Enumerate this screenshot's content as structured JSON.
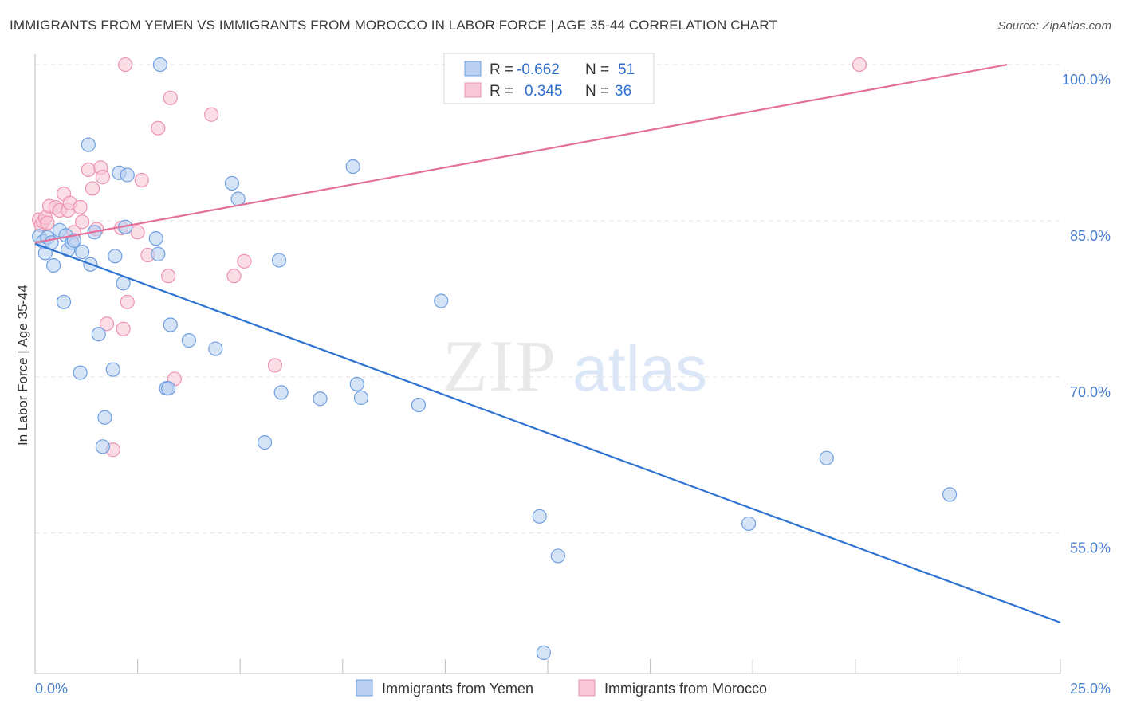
{
  "header": {
    "title": "IMMIGRANTS FROM YEMEN VS IMMIGRANTS FROM MOROCCO IN LABOR FORCE | AGE 35-44 CORRELATION CHART",
    "source": "Source: ZipAtlas.com"
  },
  "watermark": {
    "zip": "ZIP",
    "atlas": "atlas"
  },
  "stats": {
    "yemen": {
      "r_label": "R =",
      "r_value": "-0.662",
      "n_label": "N =",
      "n_value": "51"
    },
    "morocco": {
      "r_label": "R =",
      "r_value": "0.345",
      "n_label": "N =",
      "n_value": "36"
    }
  },
  "colors": {
    "yemen_fill": "#b9d0f2",
    "yemen_stroke": "#6f9fe0",
    "yemen_line": "#2f73d2",
    "morocco_fill": "#f8c6d6",
    "morocco_stroke": "#ec93b2",
    "morocco_line": "#e4709a",
    "grid": "#e3e3e3",
    "axis_label": "#4a7fcf"
  },
  "chart_data": {
    "type": "scatter",
    "title": "IMMIGRANTS FROM YEMEN VS IMMIGRANTS FROM MOROCCO IN LABOR FORCE | AGE 35-44 CORRELATION CHART",
    "xlabel": "",
    "ylabel": "In Labor Force | Age 35-44",
    "xlim": [
      0,
      25
    ],
    "ylim": [
      41.5,
      101
    ],
    "x_tick_labels": [
      {
        "value": 0,
        "label": "0.0%"
      },
      {
        "value": 25,
        "label": "25.0%"
      }
    ],
    "y_ticks": [
      {
        "value": 100,
        "label": "100.0%"
      },
      {
        "value": 85,
        "label": "85.0%"
      },
      {
        "value": 70,
        "label": "70.0%"
      },
      {
        "value": 55,
        "label": "55.0%"
      }
    ],
    "legend": [
      "Immigrants from Yemen",
      "Immigrants from Morocco"
    ],
    "series": [
      {
        "name": "Immigrants from Yemen",
        "trend": {
          "x": [
            0,
            25
          ],
          "y": [
            82.8,
            46.4
          ]
        },
        "points": [
          [
            0.1,
            83.5
          ],
          [
            0.2,
            83.0
          ],
          [
            0.25,
            81.9
          ],
          [
            0.3,
            83.4
          ],
          [
            0.4,
            82.9
          ],
          [
            0.45,
            80.7
          ],
          [
            0.6,
            84.1
          ],
          [
            0.7,
            77.2
          ],
          [
            0.75,
            83.6
          ],
          [
            0.8,
            82.2
          ],
          [
            0.9,
            82.9
          ],
          [
            0.95,
            83.1
          ],
          [
            1.1,
            70.4
          ],
          [
            1.15,
            82.0
          ],
          [
            1.3,
            92.3
          ],
          [
            1.35,
            80.8
          ],
          [
            1.45,
            83.9
          ],
          [
            1.55,
            74.1
          ],
          [
            1.7,
            66.1
          ],
          [
            1.65,
            63.3
          ],
          [
            1.9,
            70.7
          ],
          [
            1.95,
            81.6
          ],
          [
            2.05,
            89.6
          ],
          [
            2.15,
            79.0
          ],
          [
            2.2,
            84.4
          ],
          [
            2.25,
            89.4
          ],
          [
            2.95,
            83.3
          ],
          [
            3.0,
            81.8
          ],
          [
            3.05,
            100.0
          ],
          [
            3.2,
            68.9
          ],
          [
            3.25,
            68.9
          ],
          [
            3.3,
            75.0
          ],
          [
            3.75,
            73.5
          ],
          [
            4.4,
            72.7
          ],
          [
            4.8,
            88.6
          ],
          [
            4.95,
            87.1
          ],
          [
            5.6,
            63.7
          ],
          [
            5.95,
            81.2
          ],
          [
            6.0,
            68.5
          ],
          [
            6.95,
            67.9
          ],
          [
            7.75,
            90.2
          ],
          [
            7.85,
            69.3
          ],
          [
            7.95,
            68.0
          ],
          [
            9.35,
            67.3
          ],
          [
            9.9,
            77.3
          ],
          [
            12.3,
            56.6
          ],
          [
            12.75,
            52.8
          ],
          [
            12.4,
            43.5
          ],
          [
            17.4,
            55.9
          ],
          [
            19.3,
            62.2
          ],
          [
            22.3,
            58.7
          ]
        ]
      },
      {
        "name": "Immigrants from Morocco",
        "trend": {
          "x": [
            0,
            23.7
          ],
          "y": [
            82.9,
            100.0
          ]
        },
        "points": [
          [
            0.1,
            85.1
          ],
          [
            0.15,
            84.6
          ],
          [
            0.2,
            84.9
          ],
          [
            0.25,
            85.3
          ],
          [
            0.3,
            84.8
          ],
          [
            0.35,
            86.4
          ],
          [
            0.5,
            86.3
          ],
          [
            0.6,
            86.0
          ],
          [
            0.7,
            87.6
          ],
          [
            0.8,
            86.0
          ],
          [
            0.85,
            86.7
          ],
          [
            0.95,
            83.9
          ],
          [
            1.1,
            86.3
          ],
          [
            1.15,
            84.9
          ],
          [
            1.3,
            89.9
          ],
          [
            1.4,
            88.1
          ],
          [
            1.5,
            84.2
          ],
          [
            1.6,
            90.1
          ],
          [
            1.65,
            89.2
          ],
          [
            1.75,
            75.1
          ],
          [
            1.9,
            63.0
          ],
          [
            2.1,
            84.3
          ],
          [
            2.15,
            74.6
          ],
          [
            2.25,
            77.2
          ],
          [
            2.2,
            100.0
          ],
          [
            2.5,
            83.9
          ],
          [
            2.6,
            88.9
          ],
          [
            2.75,
            81.7
          ],
          [
            3.0,
            93.9
          ],
          [
            3.25,
            79.7
          ],
          [
            3.3,
            96.8
          ],
          [
            3.4,
            69.8
          ],
          [
            4.3,
            95.2
          ],
          [
            4.85,
            79.7
          ],
          [
            5.1,
            81.1
          ],
          [
            5.85,
            71.1
          ],
          [
            20.1,
            100.0
          ]
        ]
      }
    ]
  }
}
